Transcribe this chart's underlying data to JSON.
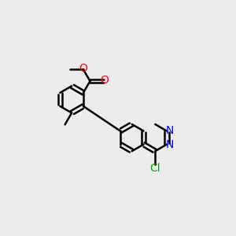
{
  "background_color": "#ebebeb",
  "bond_color": "#000000",
  "bond_width": 1.8,
  "atom_colors": {
    "O": "#ff0000",
    "N": "#0000ff",
    "Cl": "#00aa00",
    "C": "#000000"
  },
  "font_size_atoms": 10,
  "figsize": [
    3.0,
    3.0
  ],
  "dpi": 100
}
